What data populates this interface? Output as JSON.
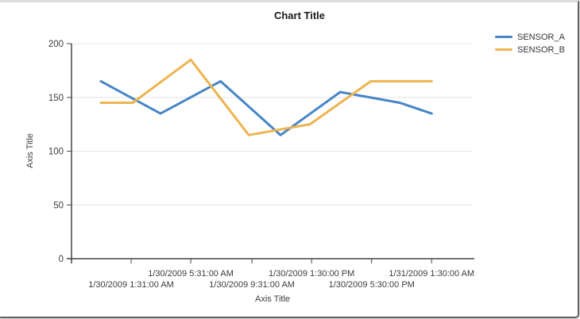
{
  "chart_data": {
    "type": "line",
    "title": "Chart Title",
    "xlabel": "Axis Title",
    "ylabel": "Axis Title",
    "ylim": [
      0,
      200
    ],
    "yticks": [
      0,
      50,
      100,
      150,
      200
    ],
    "grid": "horizontal",
    "legend_position": "top-right",
    "axis_color": "#454545",
    "gridline_color": "#e4e4e4",
    "tick_label_color": "#3d3d3d",
    "xticks": [
      {
        "label": "1/30/2009 1:31:00 AM",
        "pos": 0.148,
        "row": "lower"
      },
      {
        "label": "1/30/2009 5:31:00 AM",
        "pos": 0.296,
        "row": "upper"
      },
      {
        "label": "1/30/2009 9:31:00 AM",
        "pos": 0.448,
        "row": "lower"
      },
      {
        "label": "1/30/2009 1:30:00 PM",
        "pos": 0.596,
        "row": "upper"
      },
      {
        "label": "1/30/2009 5:30:00 PM",
        "pos": 0.745,
        "row": "lower"
      },
      {
        "label": "1/31/2009 1:30:00 AM",
        "pos": 0.894,
        "row": "upper"
      }
    ],
    "series": [
      {
        "name": "SENSOR_A",
        "color": "#4786C6",
        "points": [
          {
            "x": 0.073,
            "y": 165
          },
          {
            "x": 0.221,
            "y": 135
          },
          {
            "x": 0.37,
            "y": 165
          },
          {
            "x": 0.519,
            "y": 115
          },
          {
            "x": 0.667,
            "y": 155
          },
          {
            "x": 0.815,
            "y": 145
          },
          {
            "x": 0.894,
            "y": 135
          }
        ]
      },
      {
        "name": "SENSOR_B",
        "color": "#EDB44F",
        "points": [
          {
            "x": 0.073,
            "y": 145
          },
          {
            "x": 0.152,
            "y": 145
          },
          {
            "x": 0.296,
            "y": 185
          },
          {
            "x": 0.44,
            "y": 115
          },
          {
            "x": 0.592,
            "y": 125
          },
          {
            "x": 0.743,
            "y": 165
          },
          {
            "x": 0.894,
            "y": 165
          }
        ]
      }
    ]
  }
}
